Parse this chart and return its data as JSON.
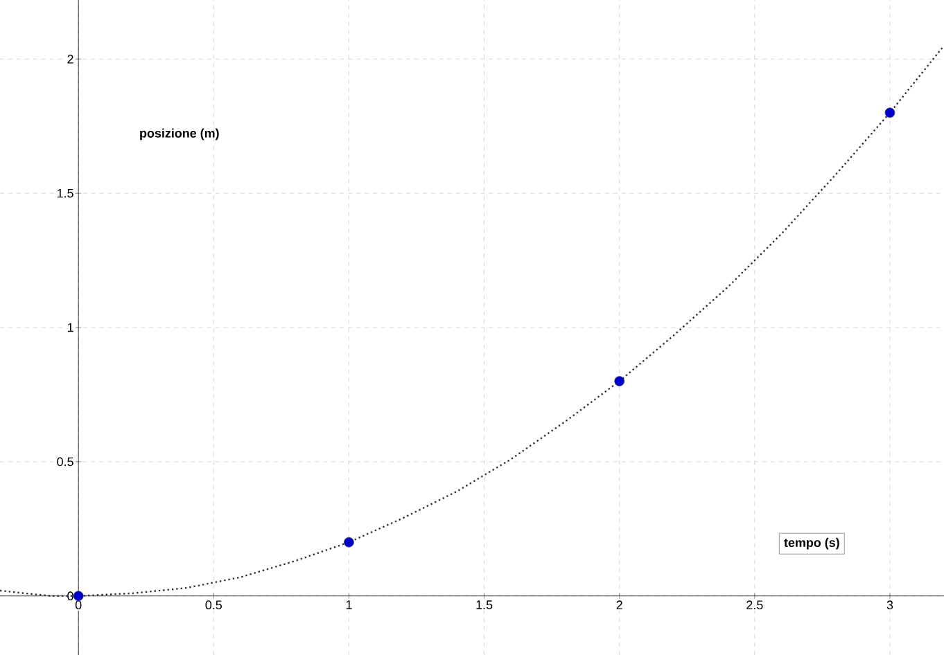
{
  "chart_data": {
    "type": "scatter",
    "xlabel": "tempo (s)",
    "ylabel": "posizione (m)",
    "xlim": [
      -0.29,
      3.2
    ],
    "ylim": [
      -0.22,
      2.22
    ],
    "xticks": [
      0,
      0.5,
      1,
      1.5,
      2,
      2.5,
      3
    ],
    "yticks": [
      0,
      0.5,
      1,
      1.5,
      2
    ],
    "grid": true,
    "series": [
      {
        "type": "line",
        "color": "#333333",
        "marker": "none",
        "line_style": "dotted",
        "x": [
          -0.29,
          -0.2,
          -0.1,
          0,
          0.2,
          0.4,
          0.6,
          0.8,
          1,
          1.2,
          1.4,
          1.6,
          1.8,
          2,
          2.2,
          2.4,
          2.6,
          2.8,
          3,
          3.2
        ],
        "values": [
          0.02,
          0.01,
          0,
          0,
          0.01,
          0.03,
          0.07,
          0.13,
          0.2,
          0.29,
          0.39,
          0.51,
          0.65,
          0.8,
          0.97,
          1.15,
          1.35,
          1.57,
          1.8,
          2.05
        ]
      },
      {
        "color": "#0000cc",
        "marker": "circle",
        "x": [
          0,
          1,
          2,
          3
        ],
        "values": [
          0,
          0.2,
          0.8,
          1.8
        ]
      }
    ]
  }
}
